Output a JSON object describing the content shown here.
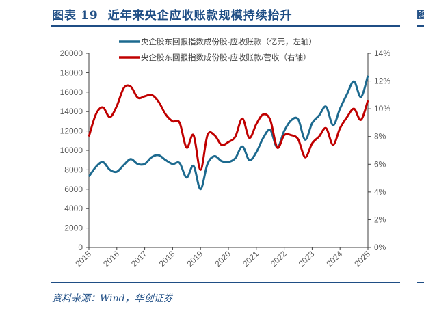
{
  "title": {
    "label": "图表",
    "number": "19",
    "text": "近年来央企应收账款规模持续抬升"
  },
  "edge_glyph": "图",
  "source": "资料来源：Wind，华创证券",
  "colors": {
    "blue": "#1d6a8f",
    "red": "#c00000",
    "title": "#1f4e85"
  },
  "chart_data": {
    "type": "line",
    "title": "近年来央企应收账款规模持续抬升",
    "x_tick_labels": [
      "2015",
      "2016",
      "2017",
      "2018",
      "2019",
      "2020",
      "2021",
      "2022",
      "2023",
      "2024",
      "2025"
    ],
    "x_range": [
      2015,
      2025
    ],
    "y_left": {
      "range": [
        0,
        20000
      ],
      "ticks": [
        "0",
        "2000",
        "4000",
        "6000",
        "8000",
        "10000",
        "12000",
        "14000",
        "16000",
        "18000",
        "20000"
      ]
    },
    "y_right": {
      "range": [
        0,
        14
      ],
      "ticks": [
        "0%",
        "2%",
        "4%",
        "6%",
        "8%",
        "10%",
        "12%",
        "14%"
      ]
    },
    "grid": false,
    "legend_position": "top",
    "series": [
      {
        "name": "央企股东回报指数成份股-应收账款（亿元，左轴）",
        "axis": "left",
        "color": "#1d6a8f",
        "values": [
          7300,
          8300,
          8800,
          8000,
          7800,
          8500,
          9100,
          8600,
          8600,
          9300,
          9500,
          9000,
          8600,
          8700,
          7200,
          8400,
          6000,
          8600,
          9400,
          8900,
          8800,
          9200,
          10400,
          9000,
          9800,
          11300,
          12100,
          10300,
          12000,
          13100,
          13200,
          11100,
          12800,
          13600,
          14500,
          12600,
          14300,
          15800,
          17100,
          15500,
          17700
        ]
      },
      {
        "name": "央企股东回报指数成份股-应收账款/营收（右轴）",
        "axis": "right",
        "color": "#c00000",
        "values": [
          8.0,
          9.6,
          10.1,
          9.4,
          10.2,
          11.5,
          11.6,
          10.8,
          10.9,
          11.0,
          10.5,
          9.6,
          9.1,
          9.0,
          7.2,
          8.1,
          5.6,
          8.1,
          8.1,
          7.4,
          7.6,
          8.0,
          9.3,
          7.9,
          8.9,
          9.6,
          9.2,
          7.2,
          8.1,
          8.1,
          7.8,
          6.5,
          7.5,
          8.0,
          8.6,
          7.4,
          8.6,
          9.4,
          10.0,
          9.2,
          10.6
        ]
      }
    ]
  }
}
